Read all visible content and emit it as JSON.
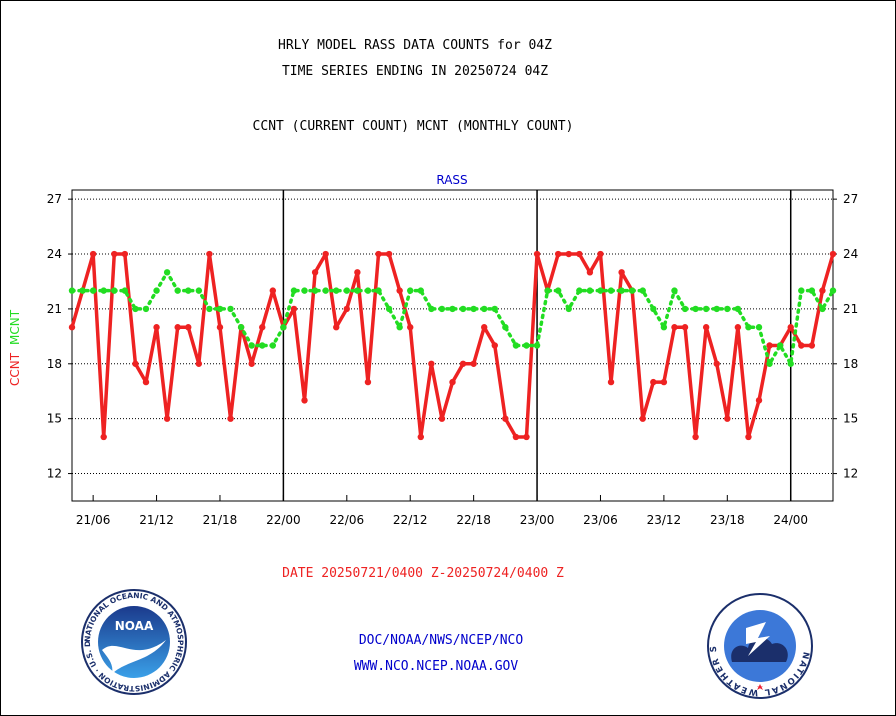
{
  "header": {
    "title1": "HRLY MODEL RASS DATA COUNTS for 04Z",
    "title2": "TIME SERIES ENDING IN 20250724 04Z",
    "subtitle": "CCNT (CURRENT COUNT) MCNT (MONTHLY COUNT)"
  },
  "footer": {
    "date_range": "DATE 20250721/0400 Z-20250724/0400 Z",
    "org": "DOC/NOAA/NWS/NCEP/NCO",
    "url": "WWW.NCO.NCEP.NOAA.GOV"
  },
  "logos": {
    "noaa_left": "NOAA",
    "noaa_ring": "NATIONAL OCEANIC AND ATMOSPHERIC ADMINISTRATION · U.S. DEPARTMENT OF COMMERCE ·",
    "nws_right": "NATIONAL WEATHER SERVICE"
  },
  "colors": {
    "ccnt": "#ee2222",
    "mcnt": "#22dd22",
    "title": "#000000",
    "chart_title": "#0000cc",
    "footer_date": "#ee2222",
    "footer_links": "#0000cc"
  },
  "chart_data": {
    "type": "line",
    "title": "RASS",
    "ylabel_series": [
      "CCNT",
      "MCNT"
    ],
    "ylim": [
      10.5,
      27.5
    ],
    "yticks": [
      12,
      15,
      18,
      21,
      24,
      27
    ],
    "xlim": [
      4,
      76
    ],
    "xticks": [
      {
        "x": 6,
        "label": "21/06"
      },
      {
        "x": 12,
        "label": "21/12"
      },
      {
        "x": 18,
        "label": "21/18"
      },
      {
        "x": 24,
        "label": "22/00"
      },
      {
        "x": 30,
        "label": "22/06"
      },
      {
        "x": 36,
        "label": "22/12"
      },
      {
        "x": 42,
        "label": "22/18"
      },
      {
        "x": 48,
        "label": "23/00"
      },
      {
        "x": 54,
        "label": "23/06"
      },
      {
        "x": 60,
        "label": "23/12"
      },
      {
        "x": 66,
        "label": "23/18"
      },
      {
        "x": 72,
        "label": "24/00"
      }
    ],
    "day_boundaries": [
      24,
      48,
      72
    ],
    "grid": "horizontal dotted",
    "series": [
      {
        "name": "CCNT",
        "values": [
          20,
          22,
          24,
          14,
          24,
          24,
          18,
          17,
          20,
          15,
          20,
          20,
          18,
          24,
          20,
          15,
          20,
          18,
          20,
          22,
          20,
          21,
          16,
          23,
          24,
          20,
          21,
          23,
          17,
          24,
          24,
          22,
          20,
          14,
          18,
          15,
          17,
          18,
          18,
          20,
          19,
          15,
          14,
          14,
          24,
          22,
          24,
          24,
          24,
          23,
          24,
          17,
          23,
          22,
          15,
          17,
          17,
          20,
          20,
          14,
          20,
          18,
          15,
          20,
          14,
          16,
          19,
          19,
          20,
          19,
          19,
          22,
          24
        ]
      },
      {
        "name": "MCNT",
        "values": [
          22,
          22,
          22,
          22,
          22,
          22,
          21,
          21,
          22,
          23,
          22,
          22,
          22,
          21,
          21,
          21,
          20,
          19,
          19,
          19,
          20,
          22,
          22,
          22,
          22,
          22,
          22,
          22,
          22,
          22,
          21,
          20,
          22,
          22,
          21,
          21,
          21,
          21,
          21,
          21,
          21,
          20,
          19,
          19,
          19,
          22,
          22,
          21,
          22,
          22,
          22,
          22,
          22,
          22,
          22,
          21,
          20,
          22,
          21,
          21,
          21,
          21,
          21,
          21,
          20,
          20,
          18,
          19,
          18,
          22,
          22,
          21,
          22
        ]
      }
    ]
  }
}
